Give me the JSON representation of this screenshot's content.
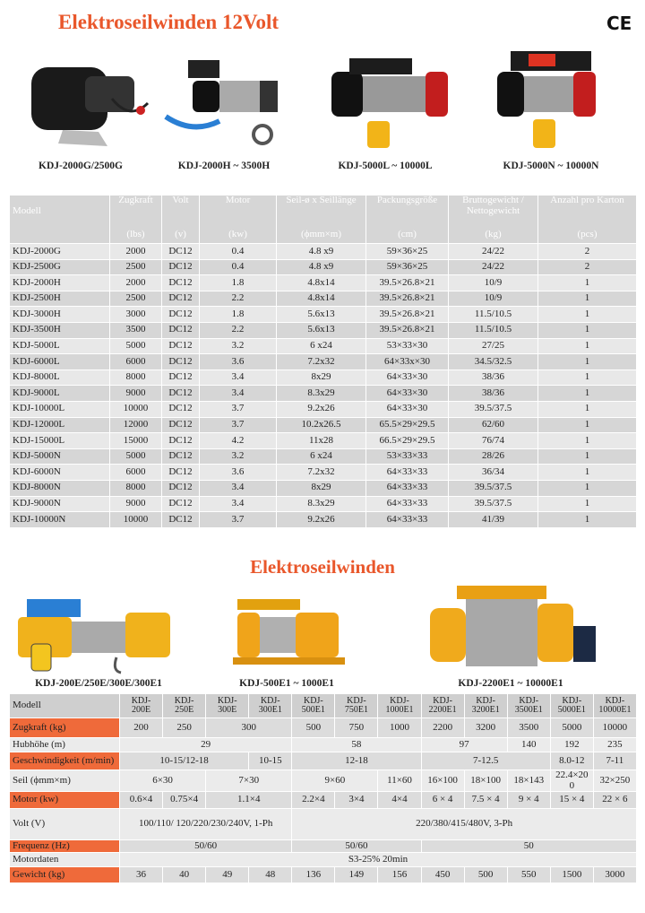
{
  "header": {
    "title": "Elektroseilwinden 12Volt",
    "mark": "CE"
  },
  "products_12v": [
    "KDJ-2000G/2500G",
    "KDJ-2000H ~ 3500H",
    "KDJ-5000L ~ 10000L",
    "KDJ-5000N ~ 10000N"
  ],
  "table_12v": {
    "columns": [
      {
        "name": "Modell"
      },
      {
        "name": "Zugkraft",
        "unit": "(lbs)"
      },
      {
        "name": "Volt",
        "unit": "(v)"
      },
      {
        "name": "Motor",
        "unit": "(kw)"
      },
      {
        "name": "Seil-ø x Seillänge",
        "unit": "(ϕmm×m)"
      },
      {
        "name": "Packungsgröße",
        "unit": "(cm)"
      },
      {
        "name": "Bruttogewicht / Nettogewicht",
        "unit": "(kg)"
      },
      {
        "name": "Anzahl pro Karton",
        "unit": "(pcs)"
      }
    ],
    "rows": [
      [
        "KDJ-2000G",
        "2000",
        "DC12",
        "0.4",
        "4.8 x9",
        "59×36×25",
        "24/22",
        "2"
      ],
      [
        "KDJ-2500G",
        "2500",
        "DC12",
        "0.4",
        "4.8 x9",
        "59×36×25",
        "24/22",
        "2"
      ],
      [
        "KDJ-2000H",
        "2000",
        "DC12",
        "1.8",
        "4.8x14",
        "39.5×26.8×21",
        "10/9",
        "1"
      ],
      [
        "KDJ-2500H",
        "2500",
        "DC12",
        "2.2",
        "4.8x14",
        "39.5×26.8×21",
        "10/9",
        "1"
      ],
      [
        "KDJ-3000H",
        "3000",
        "DC12",
        "1.8",
        "5.6x13",
        "39.5×26.8×21",
        "11.5/10.5",
        "1"
      ],
      [
        "KDJ-3500H",
        "3500",
        "DC12",
        "2.2",
        "5.6x13",
        "39.5×26.8×21",
        "11.5/10.5",
        "1"
      ],
      [
        "KDJ-5000L",
        "5000",
        "DC12",
        "3.2",
        "6 x24",
        "53×33×30",
        "27/25",
        "1"
      ],
      [
        "KDJ-6000L",
        "6000",
        "DC12",
        "3.6",
        "7.2x32",
        "64×33x×30",
        "34.5/32.5",
        "1"
      ],
      [
        "KDJ-8000L",
        "8000",
        "DC12",
        "3.4",
        "8x29",
        "64×33×30",
        "38/36",
        "1"
      ],
      [
        "KDJ-9000L",
        "9000",
        "DC12",
        "3.4",
        "8.3x29",
        "64×33×30",
        "38/36",
        "1"
      ],
      [
        "KDJ-10000L",
        "10000",
        "DC12",
        "3.7",
        "9.2x26",
        "64×33×30",
        "39.5/37.5",
        "1"
      ],
      [
        "KDJ-12000L",
        "12000",
        "DC12",
        "3.7",
        "10.2x26.5",
        "65.5×29×29.5",
        "62/60",
        "1"
      ],
      [
        "KDJ-15000L",
        "15000",
        "DC12",
        "4.2",
        "11x28",
        "66.5×29×29.5",
        "76/74",
        "1"
      ],
      [
        "KDJ-5000N",
        "5000",
        "DC12",
        "3.2",
        "6 x24",
        "53×33×33",
        "28/26",
        "1"
      ],
      [
        "KDJ-6000N",
        "6000",
        "DC12",
        "3.6",
        "7.2x32",
        "64×33×33",
        "36/34",
        "1"
      ],
      [
        "KDJ-8000N",
        "8000",
        "DC12",
        "3.4",
        "8x29",
        "64×33×33",
        "39.5/37.5",
        "1"
      ],
      [
        "KDJ-9000N",
        "9000",
        "DC12",
        "3.4",
        "8.3x29",
        "64×33×33",
        "39.5/37.5",
        "1"
      ],
      [
        "KDJ-10000N",
        "10000",
        "DC12",
        "3.7",
        "9.2x26",
        "64×33×33",
        "41/39",
        "1"
      ]
    ]
  },
  "section2": {
    "title": "Elektroseilwinden"
  },
  "products_e": [
    "KDJ-200E/250E/300E/300E1",
    "KDJ-500E1 ~ 1000E1",
    "KDJ-2200E1 ~ 10000E1"
  ],
  "table_e": {
    "label_header": "Modell",
    "models": [
      "KDJ-200E",
      "KDJ-250E",
      "KDJ-300E",
      "KDJ-300E1",
      "KDJ-500E1",
      "KDJ-750E1",
      "KDJ-1000E1",
      "KDJ-2200E1",
      "KDJ-3200E1",
      "KDJ-3500E1",
      "KDJ-5000E1",
      "KDJ-10000E1"
    ],
    "rows": [
      {
        "label": "Zugkraft (kg)",
        "cells": [
          "200",
          "250",
          {
            "text": "300",
            "span": 2
          },
          "500",
          "750",
          "1000",
          "2200",
          "3200",
          "3500",
          "5000",
          "10000"
        ]
      },
      {
        "label": "Hubhöhe (m)",
        "cells": [
          {
            "text": "29",
            "span": 4
          },
          {
            "text": "58",
            "span": 3
          },
          {
            "text": "97",
            "span": 2
          },
          "140",
          "192",
          "235"
        ]
      },
      {
        "label": "Geschwindigkeit (m/min)",
        "cells": [
          {
            "text": "10-15/12-18",
            "span": 3
          },
          "10-15",
          {
            "text": "12-18",
            "span": 3
          },
          {
            "text": "7-12.5",
            "span": 3
          },
          "8.0-12",
          "7-11"
        ]
      },
      {
        "label": "Seil (ϕmm×m)",
        "cells": [
          {
            "text": "6×30",
            "span": 2
          },
          {
            "text": "7×30",
            "span": 2
          },
          {
            "text": "9×60",
            "span": 2
          },
          "11×60",
          "16×100",
          "18×100",
          "18×143",
          "22.4×200",
          "32×250"
        ]
      },
      {
        "label": "Motor (kw)",
        "cells": [
          "0.6×4",
          "0.75×4",
          {
            "text": "1.1×4",
            "span": 2
          },
          "2.2×4",
          "3×4",
          "4×4",
          "6 × 4",
          "7.5 × 4",
          "9 × 4",
          "15 × 4",
          "22 × 6"
        ]
      },
      {
        "label": "Volt (V)",
        "cells": [
          {
            "text": "100/110/ 120/220/230/240V, 1-Ph",
            "span": 4
          },
          {
            "text": "220/380/415/480V, 3-Ph",
            "span": 8
          }
        ]
      },
      {
        "label": "Frequenz (Hz)",
        "cells": [
          {
            "text": "50/60",
            "span": 4
          },
          {
            "text": "50/60",
            "span": 3
          },
          {
            "text": "50",
            "span": 5
          }
        ]
      },
      {
        "label": "Motordaten",
        "cells": [
          {
            "text": "S3-25% 20min",
            "span": 12
          }
        ]
      },
      {
        "label": "Gewicht (kg)",
        "cells": [
          "36",
          "40",
          "49",
          "48",
          "136",
          "149",
          "156",
          "450",
          "500",
          "550",
          "1500",
          "3000"
        ]
      }
    ]
  }
}
